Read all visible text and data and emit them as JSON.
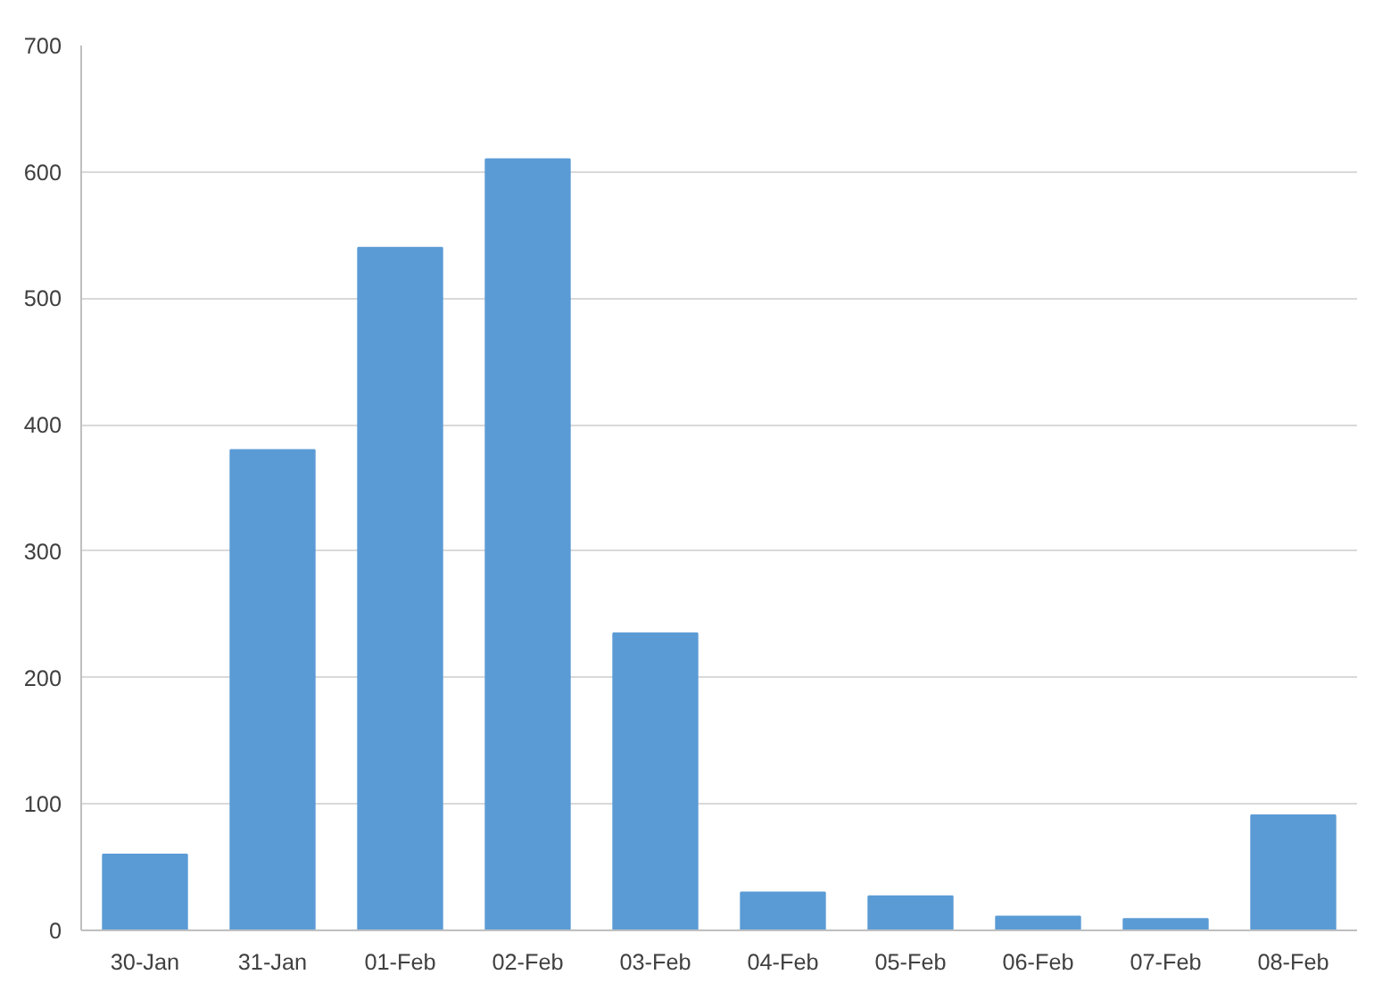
{
  "chart_data": {
    "type": "bar",
    "categories": [
      "30-Jan",
      "31-Jan",
      "01-Feb",
      "02-Feb",
      "03-Feb",
      "04-Feb",
      "05-Feb",
      "06-Feb",
      "07-Feb",
      "08-Feb"
    ],
    "values": [
      60,
      380,
      540,
      610,
      235,
      30,
      27,
      11,
      9,
      91
    ],
    "color": "#5b9bd5",
    "ylim": [
      0,
      700
    ],
    "yticks": [
      0,
      100,
      200,
      300,
      400,
      500,
      600,
      700
    ],
    "grid": "y"
  }
}
